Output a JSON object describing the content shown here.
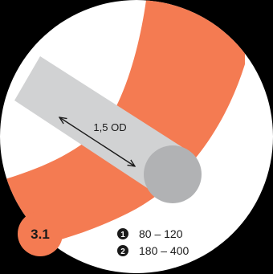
{
  "colors": {
    "background": "#000000",
    "disc": "#ffffff",
    "band": "#f47b52",
    "tube": "#d1d2d3",
    "tube_end": "#b1b2b4",
    "text": "#1a1a1a",
    "badge": "#f47b52",
    "badge_text": "#1a1a1a"
  },
  "diagram": {
    "dimension_label": "1,5 OD",
    "badge_label": "3.1",
    "legend": [
      {
        "marker": "1",
        "range": "80 – 120"
      },
      {
        "marker": "2",
        "range": "180 – 400"
      }
    ]
  }
}
